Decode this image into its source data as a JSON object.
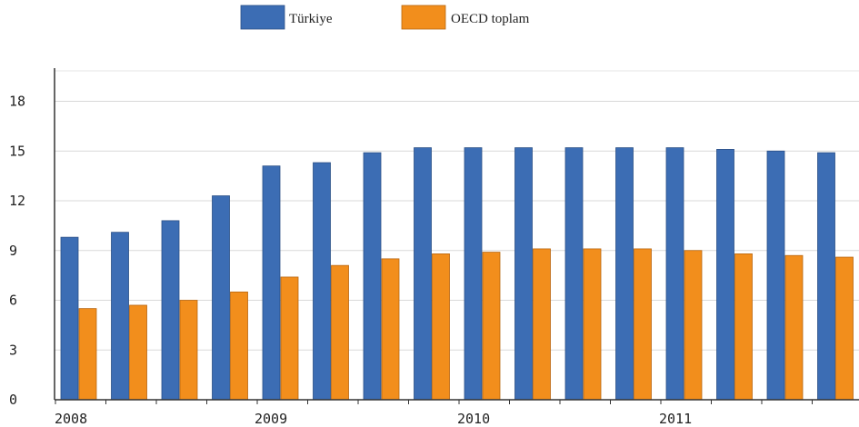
{
  "chart_data": {
    "type": "bar",
    "ylim": [
      0,
      20
    ],
    "yticks": [
      0,
      3,
      6,
      9,
      12,
      15,
      18
    ],
    "grid": true,
    "legend_position": "top-center",
    "year_labels": [
      "2008",
      "2009",
      "2010",
      "2011"
    ],
    "series": [
      {
        "name": "Türkiye",
        "color": "#3c6db4",
        "values": [
          9.8,
          10.1,
          10.8,
          12.3,
          14.1,
          14.3,
          14.9,
          15.2,
          15.2,
          15.2,
          15.2,
          15.2,
          15.2,
          15.1,
          15.0,
          14.9
        ]
      },
      {
        "name": "OECD toplam",
        "color": "#f28e1c",
        "values": [
          5.5,
          5.7,
          6.0,
          6.5,
          7.4,
          8.1,
          8.5,
          8.8,
          8.9,
          9.1,
          9.1,
          9.1,
          9.0,
          8.8,
          8.7,
          8.6
        ]
      }
    ]
  }
}
